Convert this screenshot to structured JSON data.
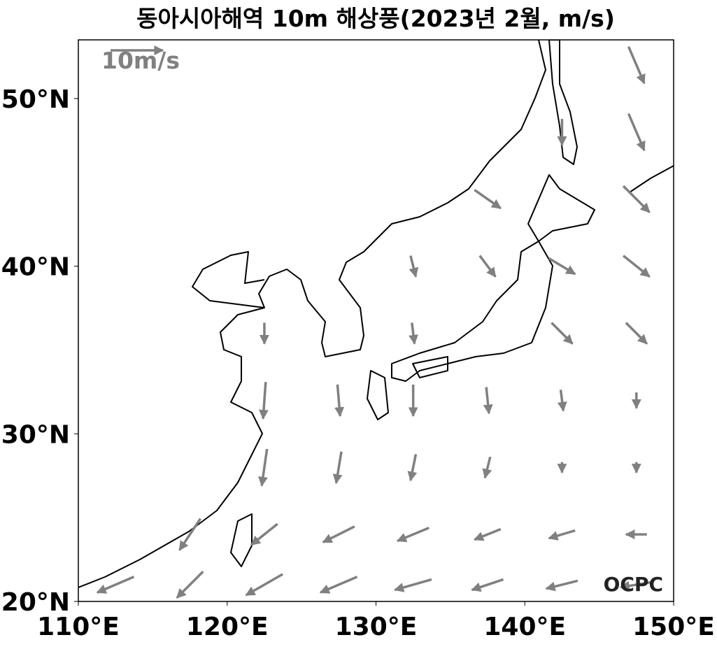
{
  "map": {
    "title": "동아시아해역 10m 해상풍(2023년 2월, m/s)",
    "reference": {
      "label": "10m/s",
      "value": 10
    },
    "credit": "OCPC",
    "xlim": [
      110,
      150
    ],
    "ylim": [
      20,
      53.5
    ],
    "xticks": [
      {
        "value": 110,
        "label": "110°E"
      },
      {
        "value": 120,
        "label": "120°E"
      },
      {
        "value": 130,
        "label": "130°E"
      },
      {
        "value": 140,
        "label": "140°E"
      },
      {
        "value": 150,
        "label": "150°E"
      }
    ],
    "yticks": [
      {
        "value": 20,
        "label": "20°N"
      },
      {
        "value": 30,
        "label": "30°N"
      },
      {
        "value": 40,
        "label": "40°N"
      },
      {
        "value": 50,
        "label": "50°N"
      }
    ],
    "color": "#808080",
    "wind": {
      "lons": [
        112.5,
        117.5,
        122.5,
        127.5,
        132.5,
        137.5,
        142.5,
        147.5
      ],
      "lats": [
        52,
        48,
        44,
        40,
        36,
        32,
        28,
        24,
        21
      ],
      "u": [
        [
          null,
          null,
          null,
          null,
          null,
          null,
          null,
          3
        ],
        [
          null,
          null,
          null,
          null,
          null,
          null,
          0,
          3
        ],
        [
          null,
          null,
          null,
          null,
          null,
          5,
          null,
          5
        ],
        [
          null,
          null,
          null,
          null,
          1,
          3,
          5,
          5
        ],
        [
          null,
          null,
          0,
          null,
          0.5,
          null,
          4,
          4
        ],
        [
          null,
          null,
          -0.5,
          0.5,
          0,
          0.5,
          0.5,
          0
        ],
        [
          null,
          null,
          -1,
          -1,
          -1,
          -1,
          0,
          0
        ],
        [
          null,
          -4,
          -5,
          -6,
          -6,
          -5,
          -5,
          -4
        ],
        [
          -7,
          -5,
          -7,
          -7,
          -7,
          -6,
          -6,
          -6
        ]
      ],
      "v": [
        [
          null,
          null,
          null,
          null,
          null,
          null,
          null,
          -7
        ],
        [
          null,
          null,
          null,
          null,
          null,
          null,
          -5,
          -7
        ],
        [
          null,
          null,
          null,
          null,
          null,
          -3.5,
          null,
          -5
        ],
        [
          null,
          null,
          null,
          null,
          -4,
          -4,
          -3,
          -4
        ],
        [
          null,
          null,
          -4,
          null,
          -4,
          null,
          -4,
          -4
        ],
        [
          null,
          null,
          -7,
          -6,
          -6,
          -5,
          -4,
          -3
        ],
        [
          null,
          null,
          -7,
          -6,
          -5,
          -4,
          -2,
          -2
        ],
        [
          null,
          -6,
          -4,
          -3,
          -2.5,
          -2,
          -1.5,
          0
        ],
        [
          -3,
          -5,
          -4,
          -3,
          -2,
          -2,
          -1.5,
          -1
        ]
      ]
    }
  }
}
